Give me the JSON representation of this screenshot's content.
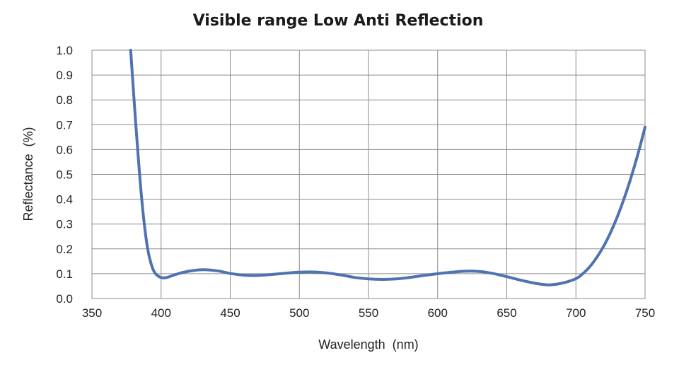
{
  "chart_data": {
    "type": "line",
    "title": "Visible range Low Anti Reflection",
    "xlabel": "Wavelength  (nm)",
    "ylabel": "Reflectance  (%)",
    "xlim": [
      350,
      750
    ],
    "ylim": [
      0.0,
      1.0
    ],
    "xticks": [
      "350",
      "400",
      "450",
      "500",
      "550",
      "600",
      "650",
      "700",
      "750"
    ],
    "yticks": [
      "0.0",
      "0.1",
      "0.2",
      "0.3",
      "0.4",
      "0.5",
      "0.6",
      "0.7",
      "0.8",
      "0.9",
      "1.0"
    ],
    "grid": true,
    "legend": "none",
    "series": [
      {
        "color": "#4f73b0",
        "x": [
          378,
          382,
          386,
          390,
          394,
          398,
          402,
          406,
          410,
          415,
          420,
          425,
          430,
          435,
          440,
          445,
          450,
          460,
          470,
          480,
          490,
          500,
          510,
          520,
          530,
          540,
          550,
          560,
          570,
          580,
          590,
          600,
          610,
          620,
          630,
          640,
          650,
          660,
          670,
          680,
          690,
          700,
          705,
          710,
          715,
          720,
          725,
          730,
          735,
          740,
          745,
          750
        ],
        "y": [
          1.0,
          0.68,
          0.4,
          0.21,
          0.12,
          0.09,
          0.083,
          0.088,
          0.096,
          0.104,
          0.11,
          0.114,
          0.116,
          0.115,
          0.112,
          0.107,
          0.101,
          0.094,
          0.093,
          0.097,
          0.102,
          0.106,
          0.107,
          0.103,
          0.095,
          0.085,
          0.079,
          0.077,
          0.079,
          0.085,
          0.093,
          0.1,
          0.106,
          0.11,
          0.109,
          0.101,
          0.088,
          0.074,
          0.062,
          0.055,
          0.062,
          0.08,
          0.1,
          0.128,
          0.165,
          0.21,
          0.265,
          0.33,
          0.405,
          0.49,
          0.585,
          0.69
        ]
      }
    ]
  }
}
